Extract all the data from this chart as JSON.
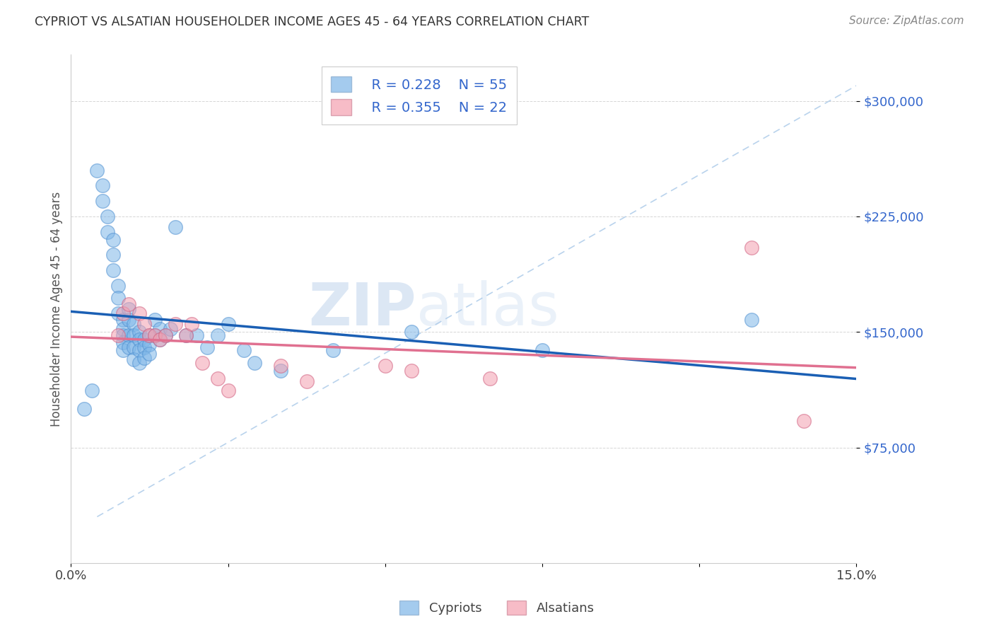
{
  "title": "CYPRIOT VS ALSATIAN HOUSEHOLDER INCOME AGES 45 - 64 YEARS CORRELATION CHART",
  "source": "Source: ZipAtlas.com",
  "ylabel": "Householder Income Ages 45 - 64 years",
  "xlim": [
    0.0,
    0.15
  ],
  "ylim": [
    0,
    330000
  ],
  "ytick_labels": [
    "$75,000",
    "$150,000",
    "$225,000",
    "$300,000"
  ],
  "ytick_values": [
    75000,
    150000,
    225000,
    300000
  ],
  "watermark_zip": "ZIP",
  "watermark_atlas": "atlas",
  "legend_blue_r": "0.228",
  "legend_blue_n": "55",
  "legend_pink_r": "0.355",
  "legend_pink_n": "22",
  "cypriot_color": "#7EB6E8",
  "alsatian_color": "#F4A0B0",
  "blue_line_color": "#1A5FB4",
  "pink_line_color": "#E07090",
  "dash_line_color": "#A8C8E8",
  "cypriot_x": [
    0.0025,
    0.004,
    0.005,
    0.006,
    0.006,
    0.007,
    0.007,
    0.008,
    0.008,
    0.008,
    0.009,
    0.009,
    0.009,
    0.01,
    0.01,
    0.01,
    0.01,
    0.01,
    0.011,
    0.011,
    0.011,
    0.011,
    0.012,
    0.012,
    0.012,
    0.012,
    0.013,
    0.013,
    0.013,
    0.013,
    0.014,
    0.014,
    0.014,
    0.015,
    0.015,
    0.015,
    0.016,
    0.016,
    0.017,
    0.017,
    0.018,
    0.019,
    0.02,
    0.022,
    0.024,
    0.026,
    0.028,
    0.03,
    0.033,
    0.035,
    0.04,
    0.05,
    0.065,
    0.09,
    0.13
  ],
  "cypriot_y": [
    100000,
    112000,
    255000,
    245000,
    235000,
    225000,
    215000,
    210000,
    200000,
    190000,
    180000,
    172000,
    162000,
    158000,
    152000,
    148000,
    143000,
    138000,
    165000,
    158000,
    148000,
    140000,
    155000,
    148000,
    140000,
    132000,
    150000,
    145000,
    138000,
    130000,
    145000,
    140000,
    133000,
    148000,
    142000,
    136000,
    158000,
    148000,
    152000,
    145000,
    148000,
    152000,
    218000,
    148000,
    148000,
    140000,
    148000,
    155000,
    138000,
    130000,
    125000,
    138000,
    150000,
    138000,
    158000
  ],
  "alsatian_x": [
    0.009,
    0.01,
    0.011,
    0.013,
    0.014,
    0.015,
    0.016,
    0.017,
    0.018,
    0.02,
    0.022,
    0.023,
    0.025,
    0.028,
    0.03,
    0.04,
    0.045,
    0.06,
    0.065,
    0.08,
    0.13,
    0.14
  ],
  "alsatian_y": [
    148000,
    162000,
    168000,
    162000,
    155000,
    148000,
    148000,
    145000,
    148000,
    155000,
    148000,
    155000,
    130000,
    120000,
    112000,
    128000,
    118000,
    128000,
    125000,
    120000,
    205000,
    92000
  ]
}
